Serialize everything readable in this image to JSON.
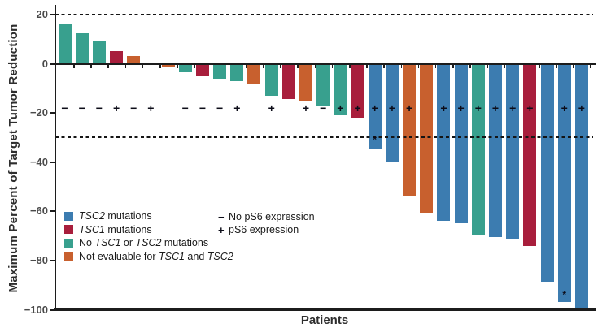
{
  "legend": {
    "items": [
      {
        "color": "#3c7cb0",
        "parts": [
          {
            "text": "TSC2"
          },
          {
            "text": " mutations"
          }
        ]
      },
      {
        "color": "#a81e3c",
        "parts": [
          {
            "text": "TSC1"
          },
          {
            "text": " mutations"
          }
        ]
      },
      {
        "color": "#38a08e",
        "parts": [
          {
            "text": "No "
          },
          {
            "text": "TSC1"
          },
          {
            "text": " or "
          },
          {
            "text": "TSC2"
          },
          {
            "text": " mutations"
          }
        ]
      },
      {
        "color": "#c8602e",
        "parts": [
          {
            "text": "Not evaluable for "
          },
          {
            "text": "TSC1"
          },
          {
            "text": " and "
          },
          {
            "text": "TSC2"
          }
        ]
      }
    ],
    "ps6": [
      {
        "symbol": "−",
        "label": "No pS6 expression"
      },
      {
        "symbol": "+",
        "label": "pS6 expression"
      }
    ]
  },
  "chart_data": {
    "type": "bar",
    "title": "",
    "xlabel": "Patients",
    "ylabel": "Maximum Percent of Target Tumor Reduction",
    "ylim": [
      -102,
      24
    ],
    "yticks": [
      20,
      0,
      -20,
      -40,
      -60,
      -80,
      -100
    ],
    "reference_lines_y": [
      20,
      -30
    ],
    "grid": false,
    "legend_position": "inside-lower-left",
    "colors": {
      "TSC2": "#3c7cb0",
      "TSC1": "#a81e3c",
      "no_TSC1_or_TSC2": "#38a08e",
      "not_evaluable": "#c8602e"
    },
    "patients": [
      {
        "value": 16,
        "mutation": "no_TSC1_or_TSC2",
        "pS6": "−"
      },
      {
        "value": 12.5,
        "mutation": "no_TSC1_or_TSC2",
        "pS6": "−"
      },
      {
        "value": 9,
        "mutation": "no_TSC1_or_TSC2",
        "pS6": "−"
      },
      {
        "value": 5,
        "mutation": "TSC1",
        "pS6": "+"
      },
      {
        "value": 3,
        "mutation": "not_evaluable",
        "pS6": "−"
      },
      {
        "value": 0,
        "mutation": "unknown",
        "pS6": "+"
      },
      {
        "value": -1,
        "mutation": "not_evaluable",
        "pS6": null
      },
      {
        "value": -3.5,
        "mutation": "no_TSC1_or_TSC2",
        "pS6": "−"
      },
      {
        "value": -5,
        "mutation": "TSC1",
        "pS6": "−"
      },
      {
        "value": -6,
        "mutation": "no_TSC1_or_TSC2",
        "pS6": "−"
      },
      {
        "value": -7,
        "mutation": "no_TSC1_or_TSC2",
        "pS6": "+"
      },
      {
        "value": -8,
        "mutation": "not_evaluable",
        "pS6": null
      },
      {
        "value": -13,
        "mutation": "no_TSC1_or_TSC2",
        "pS6": "+"
      },
      {
        "value": -14.5,
        "mutation": "TSC1",
        "pS6": null
      },
      {
        "value": -15.5,
        "mutation": "not_evaluable",
        "pS6": "+"
      },
      {
        "value": -17,
        "mutation": "no_TSC1_or_TSC2",
        "pS6": "−"
      },
      {
        "value": -21,
        "mutation": "no_TSC1_or_TSC2",
        "pS6": "+"
      },
      {
        "value": -22,
        "mutation": "TSC1",
        "pS6": "+"
      },
      {
        "value": -34.5,
        "mutation": "TSC2",
        "pS6": "+"
      },
      {
        "value": -40,
        "mutation": "TSC2",
        "pS6": "+"
      },
      {
        "value": -54,
        "mutation": "not_evaluable",
        "pS6": "+"
      },
      {
        "value": -61,
        "mutation": "not_evaluable",
        "pS6": null
      },
      {
        "value": -64,
        "mutation": "TSC2",
        "pS6": "+"
      },
      {
        "value": -65,
        "mutation": "TSC2",
        "pS6": "+"
      },
      {
        "value": -69.5,
        "mutation": "no_TSC1_or_TSC2",
        "pS6": "+"
      },
      {
        "value": -70.5,
        "mutation": "TSC2",
        "pS6": "+"
      },
      {
        "value": -71.5,
        "mutation": "TSC2",
        "pS6": "+"
      },
      {
        "value": -74,
        "mutation": "TSC1",
        "pS6": "+"
      },
      {
        "value": -89,
        "mutation": "TSC2",
        "pS6": null
      },
      {
        "value": -97,
        "mutation": "TSC2",
        "pS6": "+"
      },
      {
        "value": -100,
        "mutation": "TSC2",
        "pS6": "+"
      }
    ],
    "annotations": [
      {
        "patient_index": 18,
        "at_value": -31,
        "symbol": "*"
      },
      {
        "patient_index": 29,
        "at_value": -94,
        "symbol": "*"
      }
    ]
  }
}
